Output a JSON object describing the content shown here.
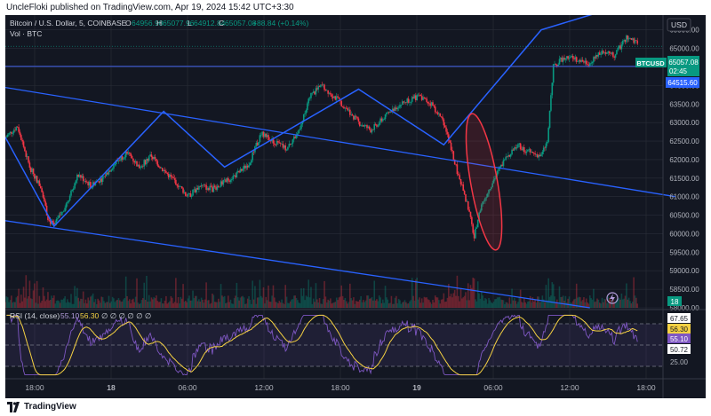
{
  "header": {
    "published_text": "UncleFloki published on TradingView.com, Apr 19, 2024 15:42 UTC+3:30"
  },
  "footer": {
    "brand": "TradingView"
  },
  "legend": {
    "symbol": "Bitcoin / U.S. Dollar, 5, COINBASE",
    "o_label": "O",
    "o_value": "64956.98",
    "h_label": "H",
    "h_value": "65077.96",
    "l_label": "L",
    "l_value": "64912.84",
    "c_label": "C",
    "c_value": "65057.08",
    "change": "+88.84 (+0.14%)",
    "vol_label": "Vol · BTC",
    "rsi_label": "RSI (14, close)",
    "rsi_value": "55.10",
    "rsi_ma_value": "56.30",
    "rsi_placeholders": "∅ ∅ ∅ ∅ ∅ ∅"
  },
  "price_axis": {
    "currency": "USD",
    "ticks": [
      "65500.00",
      "65000.00",
      "64500.00",
      "64000.00",
      "63500.00",
      "63000.00",
      "62500.00",
      "62000.00",
      "61500.00",
      "61000.00",
      "60500.00",
      "60000.00",
      "59500.00",
      "59000.00",
      "58500.00",
      "58000.00"
    ],
    "symbol_tag": "BTCUSD",
    "last_price": "65057.08",
    "countdown": "02:45",
    "hline_price": "64515.60",
    "volume_tag": "18"
  },
  "rsi_axis": {
    "ticks": [
      "67.65",
      "56.30",
      "55.10",
      "50.72",
      "25.00"
    ]
  },
  "time_axis": {
    "labels": [
      "18:00",
      "18",
      "06:00",
      "12:00",
      "18:00",
      "19",
      "06:00",
      "12:00",
      "18:00"
    ]
  },
  "colors": {
    "background": "#131722",
    "grid": "#2a2e39",
    "up": "#089981",
    "down": "#f23645",
    "drawing": "#2962ff",
    "hline": "#3f5bd8",
    "ellipse": "#f23645",
    "rsi_line": "#7e57c2",
    "rsi_ma": "#f5d142",
    "price_tag": "#089981",
    "hline_tag": "#2962ff"
  },
  "chart_data": {
    "type": "candlestick",
    "title": "Bitcoin / U.S. Dollar, 5, COINBASE",
    "ylim": [
      58000,
      65900
    ],
    "x_range_hours": [
      "Apr 17 15:00",
      "Apr 19 21:00"
    ],
    "price_path": [
      [
        0,
        62600
      ],
      [
        1,
        62900
      ],
      [
        2,
        61800
      ],
      [
        3,
        61200
      ],
      [
        3.5,
        60400
      ],
      [
        4,
        60200
      ],
      [
        5,
        60800
      ],
      [
        6,
        61600
      ],
      [
        7,
        61300
      ],
      [
        8,
        61500
      ],
      [
        9,
        61900
      ],
      [
        10,
        62200
      ],
      [
        11,
        61800
      ],
      [
        12,
        62100
      ],
      [
        13,
        61700
      ],
      [
        14,
        61400
      ],
      [
        15,
        61000
      ],
      [
        16,
        61300
      ],
      [
        17,
        61200
      ],
      [
        18,
        61400
      ],
      [
        19,
        61600
      ],
      [
        20,
        61900
      ],
      [
        21,
        62700
      ],
      [
        22,
        62500
      ],
      [
        23,
        62300
      ],
      [
        24,
        62700
      ],
      [
        25,
        63700
      ],
      [
        26,
        64000
      ],
      [
        27,
        63700
      ],
      [
        28,
        63400
      ],
      [
        29,
        63000
      ],
      [
        30,
        62800
      ],
      [
        31,
        63100
      ],
      [
        32,
        63400
      ],
      [
        33,
        63600
      ],
      [
        34,
        63700
      ],
      [
        35,
        63500
      ],
      [
        36,
        63000
      ],
      [
        37,
        61800
      ],
      [
        38,
        60700
      ],
      [
        38.5,
        59900
      ],
      [
        39,
        60700
      ],
      [
        40,
        61400
      ],
      [
        41,
        62000
      ],
      [
        42,
        62400
      ],
      [
        43,
        62200
      ],
      [
        44,
        62100
      ],
      [
        44.5,
        62500
      ],
      [
        45,
        64500
      ],
      [
        46,
        64800
      ],
      [
        47,
        64700
      ],
      [
        48,
        64600
      ],
      [
        49,
        64900
      ],
      [
        50,
        64800
      ],
      [
        51,
        65300
      ],
      [
        52,
        65100
      ]
    ],
    "annotations": {
      "horizontal_line": 64515.6,
      "upper_trendline": [
        [
          -1,
          64000
        ],
        [
          55,
          61000
        ]
      ],
      "lower_trendline": [
        [
          -1,
          60400
        ],
        [
          48,
          58000
        ]
      ],
      "zigzag": [
        [
          0,
          62600
        ],
        [
          4,
          60200
        ],
        [
          13,
          63300
        ],
        [
          18,
          61800
        ],
        [
          29,
          63900
        ],
        [
          36,
          62400
        ],
        [
          44,
          65500
        ],
        [
          53,
          66400
        ]
      ],
      "ellipse_center": [
        39.3,
        61400
      ]
    },
    "volume": {
      "last": 18
    },
    "rsi": {
      "period": 14,
      "value": 55.1,
      "ma": 56.3,
      "levels": [
        70,
        50,
        30
      ],
      "ylim": [
        20,
        80
      ]
    }
  }
}
